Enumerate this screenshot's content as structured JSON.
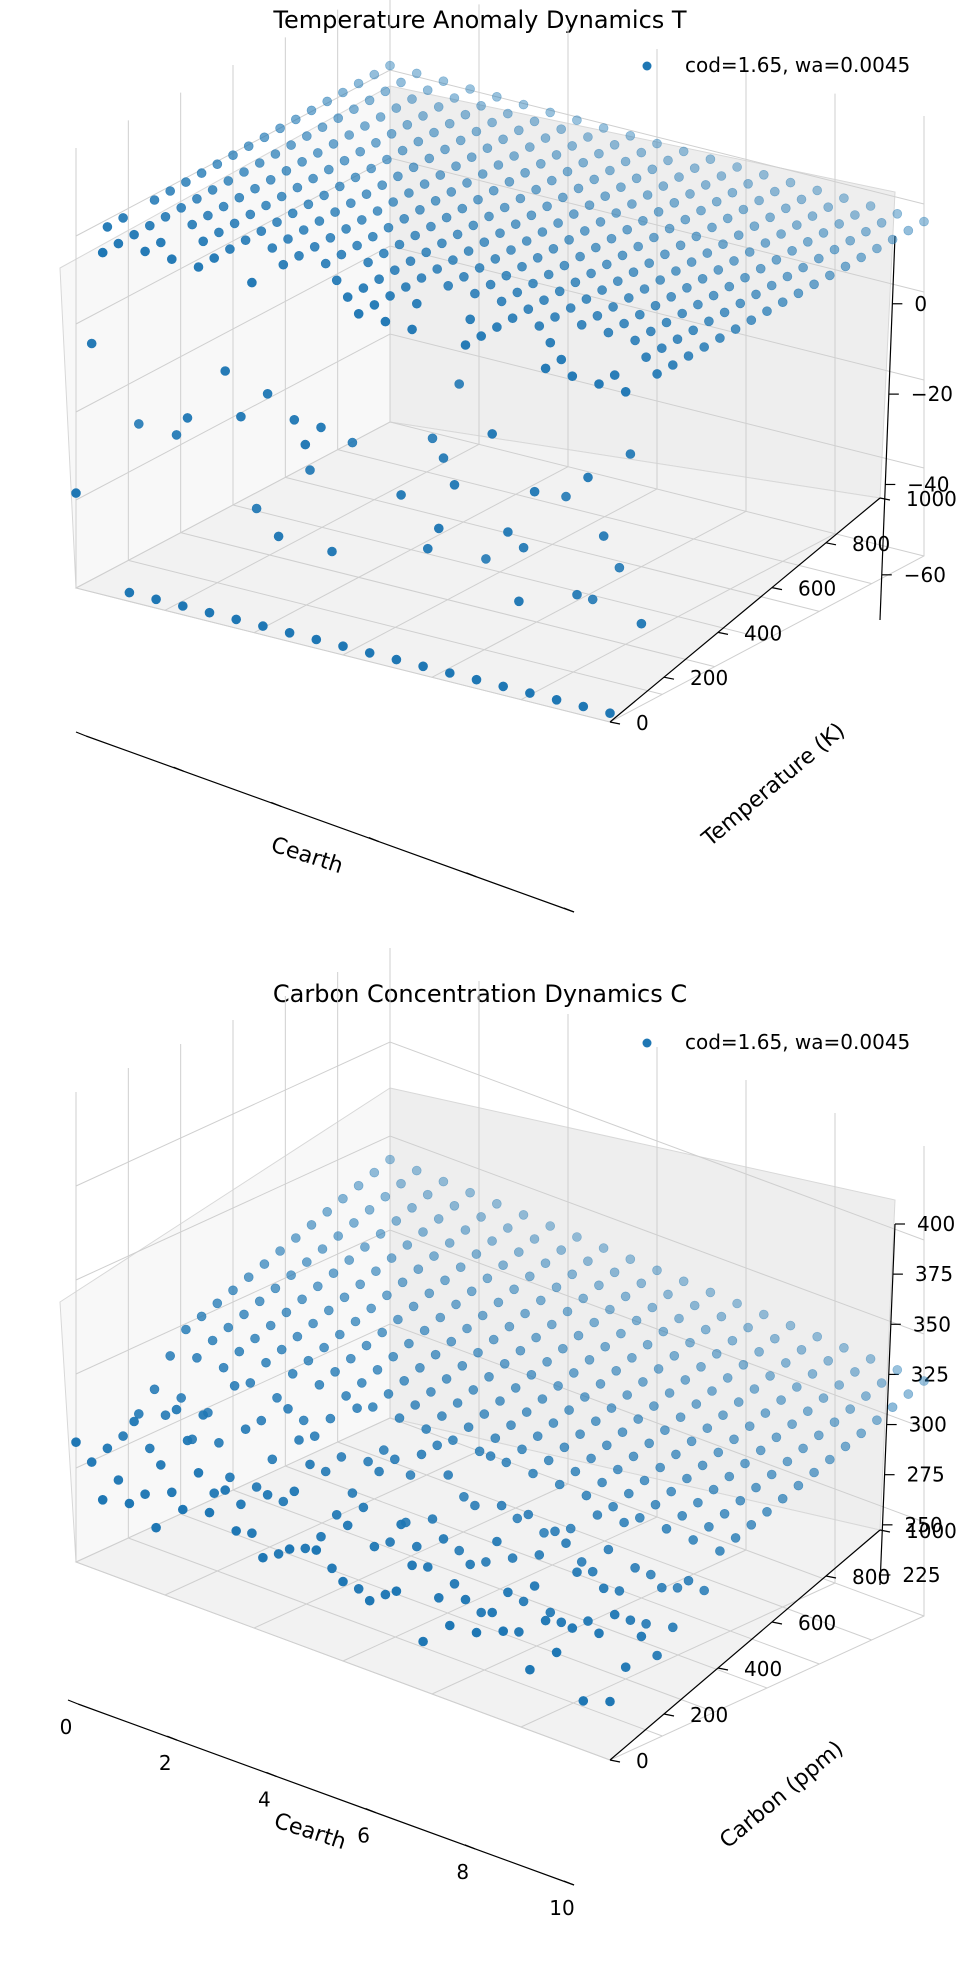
{
  "chart_data": [
    {
      "type": "scatter",
      "projection": "3d",
      "title": "Temperature Anomaly Dynamics T",
      "xlabel": "Cearth",
      "ylabel": "Temperature (K)",
      "zlabel": "",
      "xlim": [
        0,
        10
      ],
      "ylim": [
        0,
        1000
      ],
      "zlim": [
        -70,
        15
      ],
      "xticks": [],
      "yticks": [
        "0",
        "200",
        "400",
        "600",
        "800",
        "1000"
      ],
      "zticks": [
        "-60",
        "-40",
        "-20",
        "0"
      ],
      "grid": true,
      "legend_position": "top-right",
      "color": "#1f77b4",
      "series": [
        {
          "name": "cod=1.65, wa=0.0045",
          "grid_nx": 21,
          "grid_ny": 21,
          "z_range": [
            -70,
            0
          ]
        }
      ]
    },
    {
      "type": "scatter",
      "projection": "3d",
      "title": "Carbon Concentration Dynamics C",
      "xlabel": "Cearth",
      "ylabel": "Carbon (ppm)",
      "zlabel": "",
      "xlim": [
        0,
        10
      ],
      "ylim": [
        0,
        1000
      ],
      "zlim": [
        220,
        400
      ],
      "xticks": [
        "0",
        "2",
        "4",
        "6",
        "8",
        "10"
      ],
      "yticks": [
        "0",
        "200",
        "400",
        "600",
        "800",
        "1000"
      ],
      "zticks": [
        "225",
        "250",
        "275",
        "300",
        "325",
        "350",
        "375",
        "400"
      ],
      "grid": true,
      "legend_position": "top-right",
      "color": "#1f77b4",
      "series": [
        {
          "name": "cod=1.65, wa=0.0045",
          "grid_nx": 21,
          "grid_ny": 21,
          "z_range": [
            225,
            395
          ]
        }
      ]
    }
  ]
}
